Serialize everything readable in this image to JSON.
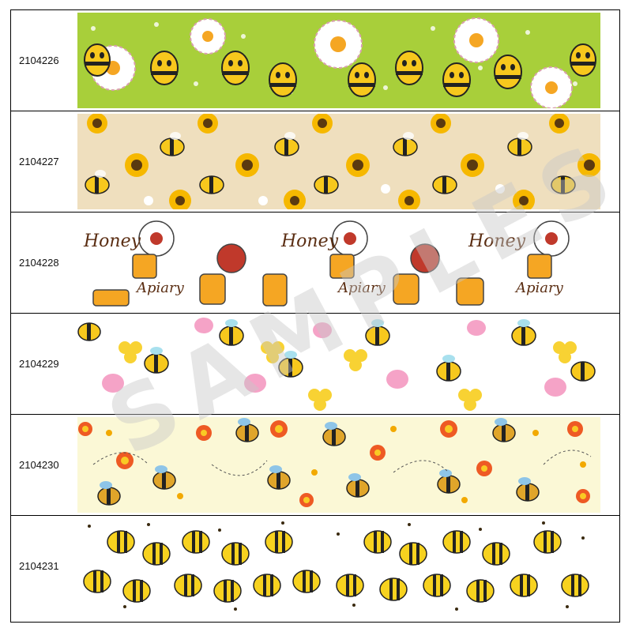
{
  "products": [
    {
      "code": "2104226",
      "bg": "#a8cf3a",
      "pattern": "daisy-bees"
    },
    {
      "code": "2104227",
      "bg": "#efdfbe",
      "pattern": "sunflower-bees"
    },
    {
      "code": "2104228",
      "bg": "#ffffff",
      "pattern": "honey-apiary"
    },
    {
      "code": "2104229",
      "bg": "#ffffff",
      "pattern": "tulip-bees"
    },
    {
      "code": "2104230",
      "bg": "#fbf8d6",
      "pattern": "orange-flower-bees"
    },
    {
      "code": "2104231",
      "bg": "#ffffff",
      "pattern": "round-bees"
    }
  ],
  "watermark": "SAMPLES",
  "lettering": {
    "honey": "Honey",
    "apiary": "Apiary"
  }
}
